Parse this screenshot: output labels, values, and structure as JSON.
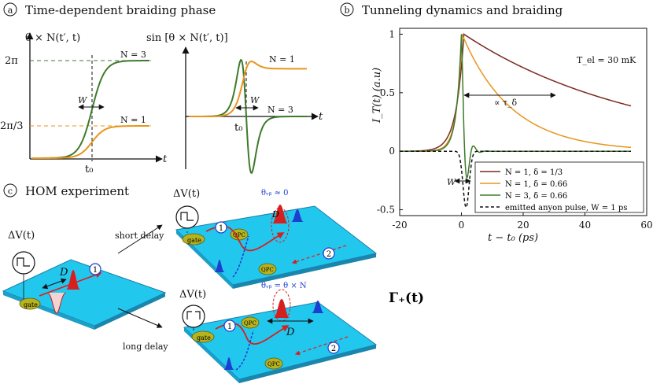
{
  "panels": {
    "a": {
      "letter": "a",
      "title": "Time-dependent braiding phase"
    },
    "b": {
      "letter": "b",
      "title": "Tunneling dynamics and braiding"
    },
    "c": {
      "letter": "c",
      "title": "HOM experiment"
    }
  },
  "panel_a": {
    "left": {
      "ylabel": "θ × N(t′, t)",
      "xlabel": "t",
      "t0_label": "t₀",
      "y_tick_high": "2π",
      "y_tick_low": "2π/3",
      "label_N3": "N = 3",
      "label_N1": "N = 1",
      "width_label": "W",
      "colors": {
        "N3": "#3e7a2b",
        "N1": "#e8951c"
      }
    },
    "right": {
      "ylabel": "sin [θ × N(t′, t)]",
      "xlabel": "t",
      "t0_label": "t₀",
      "label_N1": "N = 1",
      "label_N3": "N = 3",
      "width_label": "W"
    }
  },
  "chart_data": {
    "type": "line",
    "title": "Tunneling dynamics and braiding",
    "xlabel": "t − t₀ (ps)",
    "ylabel": "I_T(t) (a.u)",
    "xlim": [
      -20,
      60
    ],
    "ylim": [
      -0.55,
      1.05
    ],
    "x_ticks": [
      -20,
      0,
      20,
      40,
      60
    ],
    "y_ticks": [
      -0.5,
      0,
      0.5,
      1
    ],
    "annotation_temperature": "T_el = 30 mK",
    "annotation_tau": "∝ τ_δ",
    "annotation_W": "W",
    "series": [
      {
        "name": "N = 1, δ = 1/3",
        "color": "#7a2a22",
        "kind": "decay",
        "peak_t": 0.8,
        "peak": 1.0,
        "rise_tau": 2.5,
        "decay_tau": 57
      },
      {
        "name": "N = 1, δ = 0.66",
        "color": "#e8951c",
        "kind": "decay",
        "peak_t": 0.2,
        "peak": 1.0,
        "rise_tau": 1.8,
        "decay_tau": 16
      },
      {
        "name": "N = 3, δ = 0.66",
        "color": "#3e7a2b",
        "kind": "osc",
        "peak_t": 0.0,
        "peak": 1.0
      },
      {
        "name": "emitted anyon pulse, W = 1 ps",
        "color": "#111111",
        "kind": "pulse",
        "peak_t": 1.5,
        "peak": -0.48
      }
    ]
  },
  "panel_c": {
    "delta_v": "ΔV(t)",
    "d_label": "D",
    "gate_label": "gate",
    "qpc_label": "QPC",
    "short_delay": "short delay",
    "long_delay": "long delay",
    "theta_short": "θᵥᵦ ≈ 0",
    "theta_long": "θᵥᵦ = θ × N",
    "gamma": "Γ₊(t)",
    "circle_1": "1",
    "circle_2": "2"
  }
}
